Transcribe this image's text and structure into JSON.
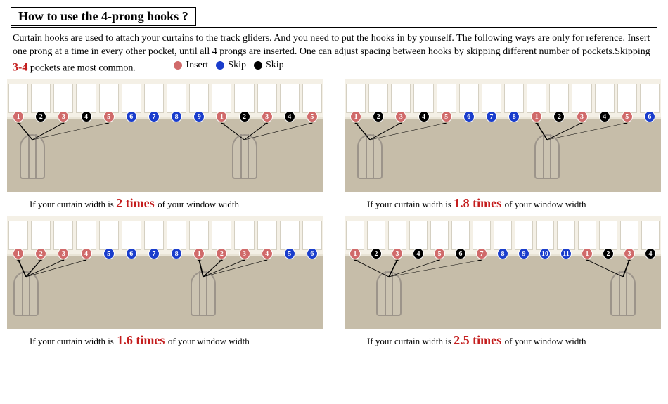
{
  "title": "How to use the 4-prong hooks ?",
  "description_a": "Curtain hooks are used to attach your curtains to the track gliders. And you need to put the hooks in by yourself. The following ways are only for reference. Insert one prong at a time in every other pocket, until all 4 prongs are inserted. One can adjust spacing between hooks by skipping different number of pockets.Skipping ",
  "description_red": "3-4",
  "description_b": " pockets are most common.",
  "legend": [
    {
      "color": "#d06a6a",
      "label": "Insert"
    },
    {
      "color": "#1a3dcc",
      "label": "Skip"
    },
    {
      "color": "#000000",
      "label": "Skip"
    }
  ],
  "colors": {
    "insert": "#d06a6a",
    "skip_blue": "#1a3dcc",
    "skip_black": "#000000",
    "tape_bg": "#f4f0e6",
    "fabric_bg": "#c6bda9",
    "hook_color": "#9c948a",
    "accent_red": "#c41e1e"
  },
  "panels": [
    {
      "id": "p1",
      "multiplier": "2 times",
      "caption_a": "If your curtain width is ",
      "caption_b": " of your window width",
      "slots": 14,
      "dots": [
        {
          "n": "1",
          "c": "insert"
        },
        {
          "n": "2",
          "c": "black"
        },
        {
          "n": "3",
          "c": "insert"
        },
        {
          "n": "4",
          "c": "black"
        },
        {
          "n": "5",
          "c": "insert"
        },
        {
          "n": "6",
          "c": "blue"
        },
        {
          "n": "7",
          "c": "blue"
        },
        {
          "n": "8",
          "c": "blue"
        },
        {
          "n": "9",
          "c": "blue"
        },
        {
          "n": "1",
          "c": "insert"
        },
        {
          "n": "2",
          "c": "black"
        },
        {
          "n": "3",
          "c": "insert"
        },
        {
          "n": "4",
          "c": "black"
        },
        {
          "n": "5",
          "c": "insert"
        }
      ],
      "hooks": [
        {
          "left_pct": 8,
          "arrow_dot_idx": [
            0,
            2,
            4
          ]
        },
        {
          "left_pct": 75,
          "arrow_dot_idx": [
            9,
            11,
            13
          ]
        }
      ]
    },
    {
      "id": "p2",
      "multiplier": "1.8 times",
      "caption_a": "If your curtain width is ",
      "caption_b": " of your window width",
      "slots": 14,
      "dots": [
        {
          "n": "1",
          "c": "insert"
        },
        {
          "n": "2",
          "c": "black"
        },
        {
          "n": "3",
          "c": "insert"
        },
        {
          "n": "4",
          "c": "black"
        },
        {
          "n": "5",
          "c": "insert"
        },
        {
          "n": "6",
          "c": "blue"
        },
        {
          "n": "7",
          "c": "blue"
        },
        {
          "n": "8",
          "c": "blue"
        },
        {
          "n": "1",
          "c": "insert"
        },
        {
          "n": "2",
          "c": "black"
        },
        {
          "n": "3",
          "c": "insert"
        },
        {
          "n": "4",
          "c": "black"
        },
        {
          "n": "5",
          "c": "insert"
        },
        {
          "n": "6",
          "c": "blue"
        }
      ],
      "hooks": [
        {
          "left_pct": 8,
          "arrow_dot_idx": [
            0,
            2,
            4
          ]
        },
        {
          "left_pct": 64,
          "arrow_dot_idx": [
            8,
            10,
            12
          ]
        }
      ]
    },
    {
      "id": "p3",
      "multiplier": "1.6 times",
      "caption_a": "If your curtain width is",
      "caption_b": " of your window width",
      "slots": 14,
      "dots": [
        {
          "n": "1",
          "c": "insert"
        },
        {
          "n": "2",
          "c": "insert"
        },
        {
          "n": "3",
          "c": "insert"
        },
        {
          "n": "4",
          "c": "insert"
        },
        {
          "n": "5",
          "c": "blue"
        },
        {
          "n": "6",
          "c": "blue"
        },
        {
          "n": "7",
          "c": "blue"
        },
        {
          "n": "8",
          "c": "blue"
        },
        {
          "n": "1",
          "c": "insert"
        },
        {
          "n": "2",
          "c": "insert"
        },
        {
          "n": "3",
          "c": "insert"
        },
        {
          "n": "4",
          "c": "insert"
        },
        {
          "n": "5",
          "c": "blue"
        },
        {
          "n": "6",
          "c": "blue"
        }
      ],
      "hooks": [
        {
          "left_pct": 6,
          "arrow_dot_idx": [
            0,
            1,
            2,
            3
          ]
        },
        {
          "left_pct": 62,
          "arrow_dot_idx": [
            8,
            9,
            10,
            11
          ]
        }
      ]
    },
    {
      "id": "p4",
      "multiplier": "2.5 times",
      "caption_a": "If your curtain width is ",
      "caption_b": " of your window width",
      "slots": 15,
      "dots": [
        {
          "n": "1",
          "c": "insert"
        },
        {
          "n": "2",
          "c": "black"
        },
        {
          "n": "3",
          "c": "insert"
        },
        {
          "n": "4",
          "c": "black"
        },
        {
          "n": "5",
          "c": "insert"
        },
        {
          "n": "6",
          "c": "black"
        },
        {
          "n": "7",
          "c": "insert"
        },
        {
          "n": "8",
          "c": "blue"
        },
        {
          "n": "9",
          "c": "blue"
        },
        {
          "n": "10",
          "c": "blue"
        },
        {
          "n": "11",
          "c": "blue"
        },
        {
          "n": "1",
          "c": "insert"
        },
        {
          "n": "2",
          "c": "black"
        },
        {
          "n": "3",
          "c": "insert"
        },
        {
          "n": "4",
          "c": "black"
        }
      ],
      "hooks": [
        {
          "left_pct": 14,
          "arrow_dot_idx": [
            0,
            2,
            4,
            6
          ]
        },
        {
          "left_pct": 88,
          "arrow_dot_idx": [
            11,
            13
          ]
        }
      ]
    }
  ]
}
